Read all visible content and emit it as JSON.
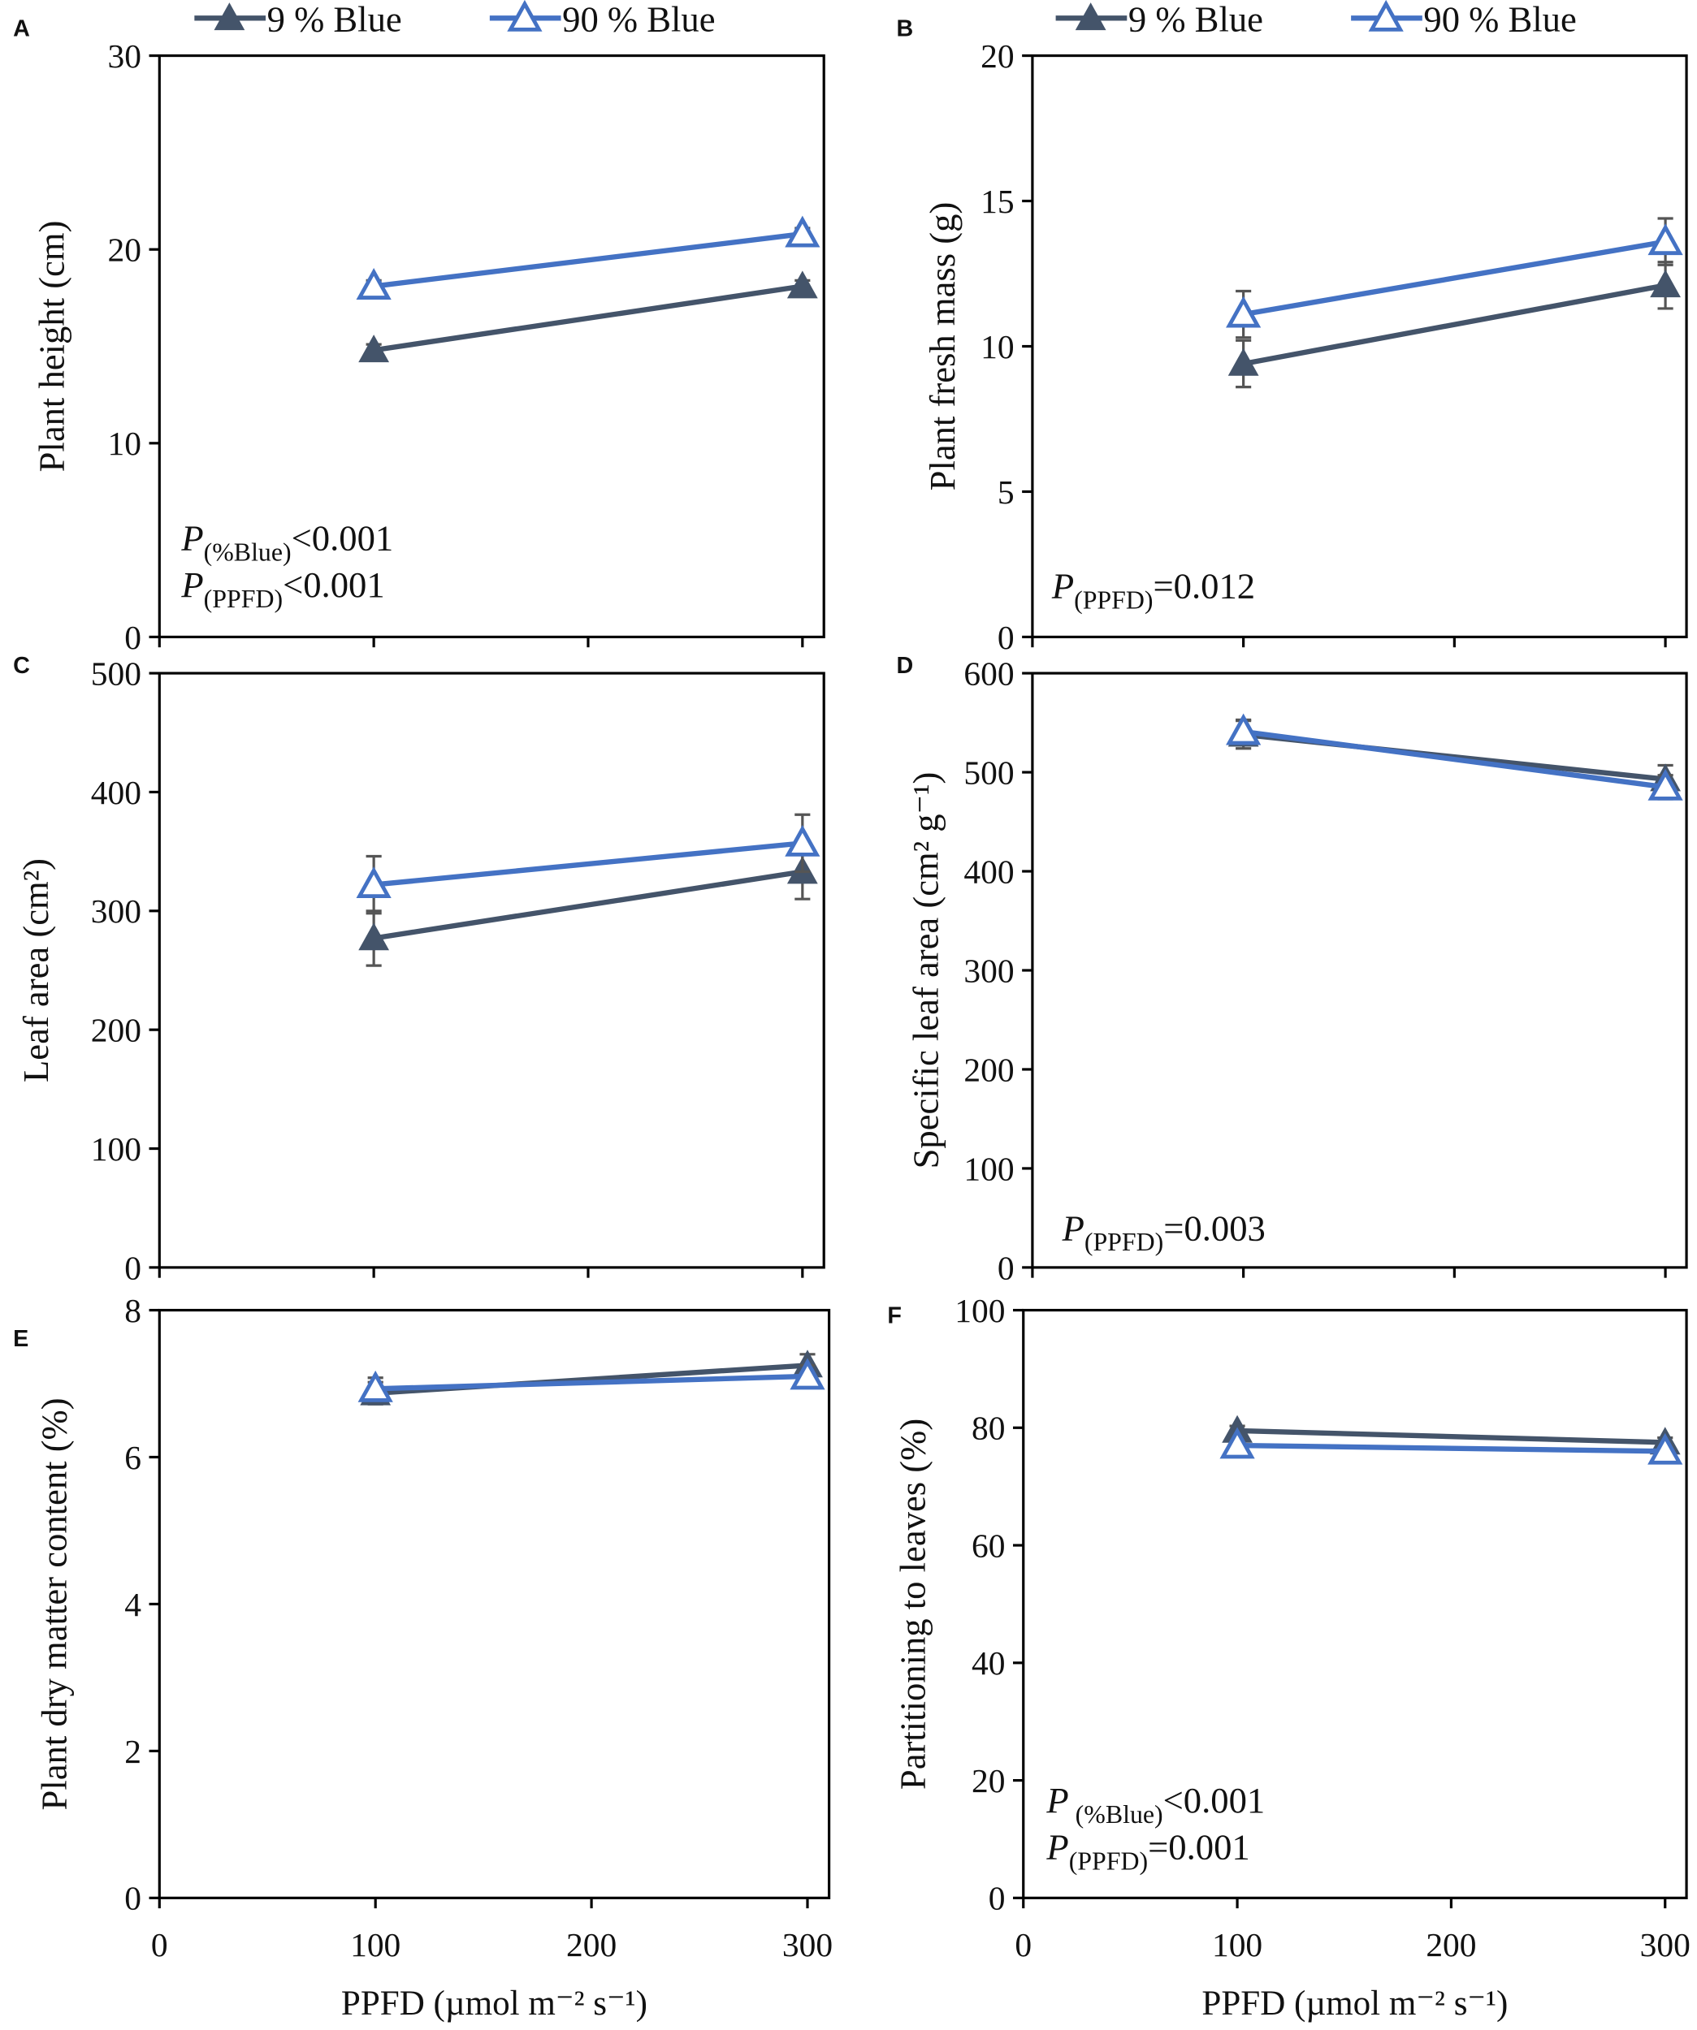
{
  "colors": {
    "dark": "#44546a",
    "blue": "#4472c4",
    "axis": "#000000",
    "error": "#555555"
  },
  "legend": [
    {
      "label": "9 % Blue",
      "marker": "filled-triangle"
    },
    {
      "label": "90 % Blue",
      "marker": "open-triangle"
    }
  ],
  "chart_data": [
    {
      "panel": "A",
      "type": "line",
      "ylabel": "Plant height (cm)",
      "xlabel": "",
      "ylim": [
        0,
        30
      ],
      "yticks": [
        "0",
        "10",
        "20",
        "30"
      ],
      "xlim": [
        0,
        310
      ],
      "xticks": [],
      "xtick_values": [
        0,
        100,
        200,
        300
      ],
      "x": [
        100,
        300
      ],
      "series": [
        {
          "name": "9 % Blue",
          "values": [
            14.8,
            18.1
          ],
          "errors": [
            0.3,
            0.3
          ]
        },
        {
          "name": "90 % Blue",
          "values": [
            18.1,
            20.8
          ],
          "errors": [
            0.3,
            0.3
          ]
        }
      ],
      "annotations": [
        {
          "p": "P",
          "sub": "(%Blue)",
          "rest": "<0.001"
        },
        {
          "p": "P",
          "sub": "(PPFD)",
          "rest": "<0.001"
        }
      ]
    },
    {
      "panel": "B",
      "type": "line",
      "ylabel": "Plant fresh mass (g)",
      "xlabel": "",
      "ylim": [
        0,
        20
      ],
      "yticks": [
        "0",
        "5",
        "10",
        "15",
        "20"
      ],
      "xlim": [
        0,
        310
      ],
      "xticks": [],
      "xtick_values": [
        0,
        100,
        200,
        300
      ],
      "x": [
        100,
        300
      ],
      "series": [
        {
          "name": "9 % Blue",
          "values": [
            9.4,
            12.1
          ],
          "errors": [
            0.8,
            0.8
          ]
        },
        {
          "name": "90 % Blue",
          "values": [
            11.1,
            13.6
          ],
          "errors": [
            0.8,
            0.8
          ]
        }
      ],
      "annotations": [
        {
          "p": "P",
          "sub": "(PPFD)",
          "rest": "=0.012"
        }
      ]
    },
    {
      "panel": "C",
      "type": "line",
      "ylabel": "Leaf area (cm²)",
      "xlabel": "",
      "ylim": [
        0,
        500
      ],
      "yticks": [
        "0",
        "100",
        "200",
        "300",
        "400",
        "500"
      ],
      "xlim": [
        0,
        310
      ],
      "xticks": [],
      "xtick_values": [
        0,
        100,
        200,
        300
      ],
      "x": [
        100,
        300
      ],
      "series": [
        {
          "name": "9 % Blue",
          "values": [
            277,
            333
          ],
          "errors": [
            23,
            23
          ]
        },
        {
          "name": "90 % Blue",
          "values": [
            322,
            357
          ],
          "errors": [
            24,
            24
          ]
        }
      ],
      "annotations": []
    },
    {
      "panel": "D",
      "type": "line",
      "ylabel": "Specific leaf area (cm² g⁻¹)",
      "xlabel": "",
      "ylim": [
        0,
        600
      ],
      "yticks": [
        "0",
        "100",
        "200",
        "300",
        "400",
        "500",
        "600"
      ],
      "xlim": [
        0,
        310
      ],
      "xticks": [],
      "xtick_values": [
        0,
        100,
        200,
        300
      ],
      "x": [
        100,
        300
      ],
      "series": [
        {
          "name": "9 % Blue",
          "values": [
            538,
            493
          ],
          "errors": [
            14,
            14
          ]
        },
        {
          "name": "90 % Blue",
          "values": [
            541,
            485
          ],
          "errors": [
            12,
            12
          ]
        }
      ],
      "annotations": [
        {
          "p": "P",
          "sub": "(PPFD)",
          "rest": "=0.003"
        }
      ]
    },
    {
      "panel": "E",
      "type": "line",
      "ylabel": "Plant  dry matter content (%)",
      "xlabel": "PPFD (µmol m⁻² s⁻¹)",
      "ylim": [
        0,
        8
      ],
      "yticks": [
        "0",
        "2",
        "4",
        "6",
        "8"
      ],
      "xlim": [
        0,
        310
      ],
      "xticks": [
        "0",
        "100",
        "200",
        "300"
      ],
      "xtick_values": [
        0,
        100,
        200,
        300
      ],
      "x": [
        100,
        300
      ],
      "series": [
        {
          "name": "9 % Blue",
          "values": [
            6.87,
            7.25
          ],
          "errors": [
            0.15,
            0.15
          ]
        },
        {
          "name": "90 % Blue",
          "values": [
            6.93,
            7.1
          ],
          "errors": [
            0.15,
            0.15
          ]
        }
      ],
      "annotations": []
    },
    {
      "panel": "F",
      "type": "line",
      "ylabel": "Partitioning to leaves (%)",
      "xlabel": "PPFD (µmol m⁻² s⁻¹)",
      "ylim": [
        0,
        100
      ],
      "yticks": [
        "0",
        "20",
        "40",
        "60",
        "80",
        "100"
      ],
      "xlim": [
        0,
        310
      ],
      "xticks": [
        "0",
        "100",
        "200",
        "300"
      ],
      "xtick_values": [
        0,
        100,
        200,
        300
      ],
      "x": [
        100,
        300
      ],
      "series": [
        {
          "name": "9 % Blue",
          "values": [
            79.5,
            77.5
          ],
          "errors": [
            0.8,
            0.8
          ]
        },
        {
          "name": "90 % Blue",
          "values": [
            77.0,
            76.0
          ],
          "errors": [
            0.8,
            0.8
          ]
        }
      ],
      "annotations": [
        {
          "p": "P",
          "sub": " (%Blue)",
          "rest": "<0.001"
        },
        {
          "p": "P",
          "sub": "(PPFD)",
          "rest": "=0.001"
        }
      ]
    }
  ]
}
